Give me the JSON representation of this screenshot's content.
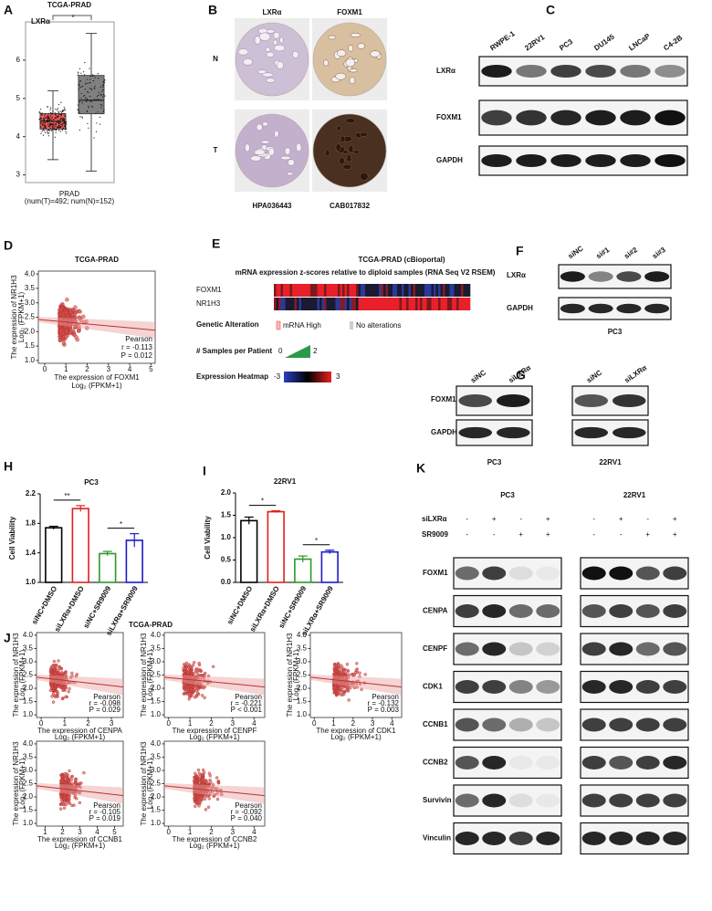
{
  "panel_labels": [
    "A",
    "B",
    "C",
    "D",
    "E",
    "F",
    "G",
    "H",
    "I",
    "J",
    "K"
  ],
  "chart_data": [
    {
      "type": "box",
      "title": "TCGA-PRAD",
      "annotation": "LXRα",
      "significance": "*",
      "x_label": "PRAD",
      "x_sublabel": "(num(T)=492; num(N)=152)",
      "ylim": [
        2.8,
        7
      ],
      "yticks": [
        3,
        4,
        5,
        6
      ],
      "boxes": [
        {
          "color": "#f15a5a",
          "min": 3.4,
          "q1": 4.2,
          "median": 4.4,
          "q3": 4.6,
          "max": 5.2
        },
        {
          "color": "#808080",
          "min": 3.1,
          "q1": 4.6,
          "median": 4.95,
          "q3": 5.6,
          "max": 6.7
        }
      ]
    },
    {
      "type": "scatter",
      "title": "TCGA-PRAD",
      "x_label": "The expression of FOXM1",
      "x_sublabel": "Log₂ (FPKM+1)",
      "y_label": "The expression of NR1H3",
      "y_sublabel": "Log₂ (FPKM+1)",
      "stats": [
        "Pearson",
        "r = -0.113",
        "P = 0.012"
      ],
      "color": "#d9534f",
      "xlim": [
        -0.3,
        5.2
      ],
      "ylim": [
        0.9,
        4.1
      ],
      "xticks": [
        0,
        1,
        2,
        3,
        4,
        5
      ],
      "yticks": [
        {
          "value": 1,
          "label": "1.0"
        },
        1.5,
        {
          "value": 2,
          "label": "2.0"
        },
        2.5,
        {
          "value": 3,
          "label": "3.0"
        },
        3.5,
        {
          "value": 4,
          "label": "4.0"
        }
      ]
    },
    {
      "type": "bar",
      "title": "PC3",
      "y_label": "Cell Viability",
      "categories": [
        "siNC+DMSO",
        "siLXRα+DMSO",
        "siNC+SR9009",
        "siLXRα+SR9009"
      ],
      "values": [
        1.74,
        2.0,
        1.39,
        1.57
      ],
      "errors": [
        0.02,
        0.04,
        0.03,
        0.09
      ],
      "colors": [
        "#000000",
        "#e0201b",
        "#2a9a2a",
        "#1c1cc8"
      ],
      "ylim": [
        1.0,
        2.2
      ],
      "yticks": [
        {
          "value": 1,
          "label": "1.0"
        },
        1.4,
        1.8,
        2.2
      ],
      "annotations": [
        "**",
        "*"
      ]
    },
    {
      "type": "bar",
      "title": "22RV1",
      "y_label": "Cell Viability",
      "categories": [
        "siNC+DMSO",
        "siLXRα+DMSO",
        "siNC+SR9009",
        "siLXRα+SR9009"
      ],
      "values": [
        1.38,
        1.58,
        0.52,
        0.68
      ],
      "errors": [
        0.08,
        0.02,
        0.07,
        0.04
      ],
      "colors": [
        "#000000",
        "#e0201b",
        "#2a9a2a",
        "#1c1cc8"
      ],
      "ylim": [
        0,
        2.0
      ],
      "yticks": [
        {
          "value": 0,
          "label": "0.0"
        },
        0.5,
        {
          "value": 1,
          "label": "1.0"
        },
        1.5,
        {
          "value": 2,
          "label": "2.0"
        }
      ],
      "annotations": [
        "*",
        "*"
      ]
    },
    {
      "type": "scatter",
      "x_label": "The expression of CENPA",
      "x_sublabel": "Log₂ (FPKM+1)",
      "y_label": "The expression of NR1H3",
      "y_sublabel": "Log₂ (FPKM+1)",
      "stats": [
        "Pearson",
        "r = -0.098",
        "P = 0.029"
      ],
      "color": "#d9534f",
      "xlim": [
        -0.2,
        3.5
      ],
      "ylim": [
        0.9,
        4.1
      ],
      "xticks": [
        0,
        1,
        2,
        3
      ],
      "yticks": [
        {
          "value": 1,
          "label": "1.0"
        },
        1.5,
        {
          "value": 2,
          "label": "2.0"
        },
        2.5,
        {
          "value": 3,
          "label": "3.0"
        },
        3.5,
        {
          "value": 4,
          "label": "4.0"
        }
      ]
    },
    {
      "type": "scatter",
      "x_label": "The expression of CENPF",
      "x_sublabel": "Log₂ (FPKM+1)",
      "y_label": "The expression of NR1H3",
      "y_sublabel": "Log₂ (FPKM+1)",
      "stats": [
        "Pearson",
        "r = -0.221",
        "P < 0.001"
      ],
      "color": "#d9534f",
      "xlim": [
        -0.2,
        4.5
      ],
      "ylim": [
        0.9,
        4.1
      ],
      "xticks": [
        0,
        1,
        2,
        3,
        4
      ],
      "yticks": [
        {
          "value": 1,
          "label": "1.0"
        },
        1.5,
        {
          "value": 2,
          "label": "2.0"
        },
        2.5,
        {
          "value": 3,
          "label": "3.0"
        },
        3.5,
        {
          "value": 4,
          "label": "4.0"
        }
      ]
    },
    {
      "type": "scatter",
      "x_label": "The expression of CDK1",
      "x_sublabel": "Log₂ (FPKM+1)",
      "y_label": "The expression of NR1H3",
      "y_sublabel": "Log₂ (FPKM+1)",
      "stats": [
        "Pearson",
        "r = -0.132",
        "P = 0.003"
      ],
      "color": "#d9534f",
      "xlim": [
        -0.2,
        4.5
      ],
      "ylim": [
        0.9,
        4.1
      ],
      "xticks": [
        0,
        1,
        2,
        3,
        4
      ],
      "yticks": [
        {
          "value": 1,
          "label": "1.0"
        },
        1.5,
        {
          "value": 2,
          "label": "2.0"
        },
        2.5,
        {
          "value": 3,
          "label": "3.0"
        },
        3.5,
        {
          "value": 4,
          "label": "4.0"
        }
      ]
    },
    {
      "type": "scatter",
      "x_label": "The expression of CCNB1",
      "x_sublabel": "Log₂ (FPKM+1)",
      "y_label": "The expression of NR1H3",
      "y_sublabel": "Log₂ (FPKM+1)",
      "stats": [
        "Pearson",
        "r = -0.105",
        "P = 0.019"
      ],
      "color": "#d9534f",
      "xlim": [
        0.5,
        5.5
      ],
      "ylim": [
        0.9,
        4.1
      ],
      "xticks": [
        1,
        2,
        3,
        4,
        5
      ],
      "yticks": [
        {
          "value": 1,
          "label": "1.0"
        },
        1.5,
        {
          "value": 2,
          "label": "2.0"
        },
        2.5,
        {
          "value": 3,
          "label": "3.0"
        },
        3.5,
        {
          "value": 4,
          "label": "4.0"
        }
      ]
    },
    {
      "type": "scatter",
      "x_label": "The expression of CCNB2",
      "x_sublabel": "Log₂ (FPKM+1)",
      "y_label": "The expression of NR1H3",
      "y_sublabel": "Log₂ (FPKM+1)",
      "stats": [
        "Pearson",
        "r = -0.092",
        "P = 0.040"
      ],
      "color": "#d9534f",
      "xlim": [
        -0.2,
        4.5
      ],
      "ylim": [
        0.9,
        4.1
      ],
      "xticks": [
        0,
        1,
        2,
        3,
        4
      ],
      "yticks": [
        {
          "value": 1,
          "label": "1.0"
        },
        1.5,
        {
          "value": 2,
          "label": "2.0"
        },
        2.5,
        {
          "value": 3,
          "label": "3.0"
        },
        3.5,
        {
          "value": 4,
          "label": "4.0"
        }
      ]
    }
  ],
  "J": {
    "title": "TCGA-PRAD"
  },
  "ihc": {
    "columns": [
      "LXRα",
      "FOXM1"
    ],
    "rows": [
      "N",
      "T"
    ],
    "antibodies": [
      "HPA036443",
      "CAB017832"
    ]
  },
  "blot_C": {
    "lanes": [
      "RWPE-1",
      "22RV1",
      "PC3",
      "DU145",
      "LNCaP",
      "C4-2B"
    ],
    "rows": [
      "LXRα",
      "FOXM1",
      "GAPDH"
    ]
  },
  "heatmap_E": {
    "title": "TCGA-PRAD (cBioportal)",
    "subtitle": "mRNA expression z-scores relative to diploid samples (RNA Seq V2 RSEM)",
    "genes": [
      "FOXM1",
      "NR1H3"
    ],
    "genetic_alteration": "Genetic Alteration",
    "legend_high": "mRNA High",
    "legend_none": "No alterations",
    "samples": "# Samples per Patient",
    "samples_range": [
      0,
      2
    ],
    "expression": "Expression Heatmap",
    "expression_range": [
      -3,
      3
    ]
  },
  "blot_F": {
    "lanes": [
      "siNC",
      "si#1",
      "si#2",
      "si#3"
    ],
    "rows": [
      "LXRα",
      "GAPDH"
    ],
    "cell": "PC3"
  },
  "blot_G": {
    "lanes": [
      "siNC",
      "siLXRα"
    ],
    "rows": [
      "FOXM1",
      "GAPDH"
    ],
    "cells": [
      "PC3",
      "22RV1"
    ]
  },
  "blot_K": {
    "cells": [
      "PC3",
      "22RV1"
    ],
    "treatments": [
      "siLXRα",
      "SR9009"
    ],
    "signs": [
      [
        "-",
        "+",
        "-",
        "+"
      ],
      [
        "-",
        "-",
        "+",
        "+"
      ]
    ],
    "rows": [
      "FOXM1",
      "CENPA",
      "CENPF",
      "CDK1",
      "CCNB1",
      "CCNB2",
      "Survivin",
      "Vinculin"
    ]
  }
}
